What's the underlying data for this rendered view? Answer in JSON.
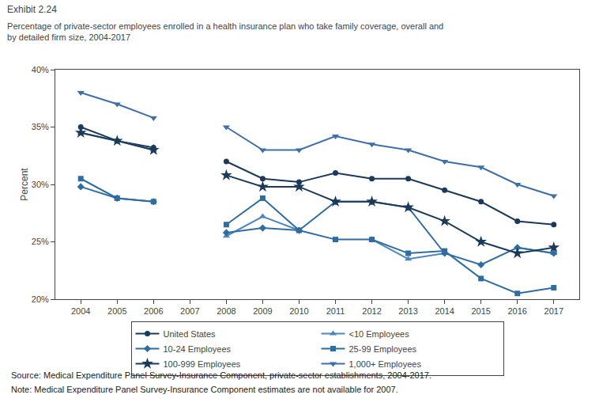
{
  "chart_data": {
    "type": "line",
    "title": "Exhibit 2.24",
    "subtitle": "Percentage of private-sector employees enrolled in a health insurance plan who take family coverage, overall and\nby detailed firm size, 2004-2017",
    "y_label": "Percent",
    "annotations": [
      "Source: Medical Expenditure Panel Survey-Insurance Component, private-sector establishments, 2004-2017.",
      "Note: Medical Expenditure Panel Survey-Insurance Component estimates are not available for 2007."
    ],
    "x": [
      2004,
      2005,
      2006,
      2007,
      2008,
      2009,
      2010,
      2011,
      2012,
      2013,
      2014,
      2015,
      2016,
      2017
    ],
    "series": [
      {
        "name": "United States",
        "color": "#1a3a5c",
        "marker": "circle",
        "line_style": "solid",
        "values": [
          35.0,
          33.8,
          33.2,
          null,
          32.0,
          30.5,
          30.2,
          31.0,
          30.5,
          30.5,
          29.5,
          28.5,
          26.8,
          26.5
        ]
      },
      {
        "name": "<10 Employees",
        "color": "#4f86c0",
        "marker": "triangle-up",
        "line_style": "solid",
        "values": [
          34.5,
          33.8,
          33.0,
          null,
          25.5,
          27.2,
          26.0,
          null,
          25.2,
          23.5,
          24.0,
          null,
          24.5,
          24.0
        ]
      },
      {
        "name": "10-24 Employees",
        "color": "#2e6da4",
        "marker": "diamond",
        "line_style": "solid",
        "values": [
          29.8,
          28.8,
          28.5,
          null,
          25.8,
          26.2,
          26.0,
          28.5,
          28.5,
          28.0,
          24.0,
          23.0,
          24.5,
          24.0
        ]
      },
      {
        "name": "25-99 Employees",
        "color": "#2e6da4",
        "marker": "square",
        "line_style": "solid",
        "values": [
          30.5,
          28.8,
          28.5,
          null,
          26.5,
          28.8,
          26.0,
          25.2,
          25.2,
          24.0,
          24.2,
          21.8,
          20.5,
          21.0
        ]
      },
      {
        "name": "100-999 Employees",
        "color": "#1a3a5c",
        "marker": "star",
        "line_style": "solid",
        "values": [
          34.5,
          33.8,
          33.0,
          null,
          30.8,
          29.8,
          29.8,
          28.5,
          28.5,
          28.0,
          26.8,
          25.0,
          24.0,
          24.5
        ]
      },
      {
        "name": "1,000+ Employees",
        "color": "#3d6fa8",
        "marker": "triangle-down",
        "line_style": "solid",
        "values": [
          38.0,
          37.0,
          35.8,
          null,
          35.0,
          33.0,
          33.0,
          34.2,
          33.5,
          33.0,
          32.0,
          31.5,
          30.0,
          29.0
        ]
      }
    ],
    "xlim": [
      2003.3,
      2017.7
    ],
    "xticks": [
      2004,
      2005,
      2006,
      2007,
      2008,
      2009,
      2010,
      2011,
      2012,
      2013,
      2014,
      2015,
      2016,
      2017
    ],
    "ylim": [
      20,
      40
    ],
    "yticks": [
      {
        "value": 20,
        "label": "20%"
      },
      {
        "value": 25,
        "label": "25%"
      },
      {
        "value": 30,
        "label": "30%"
      },
      {
        "value": 35,
        "label": "35%"
      },
      {
        "value": 40,
        "label": "40%"
      }
    ],
    "grid": false,
    "legend": "bottom"
  }
}
